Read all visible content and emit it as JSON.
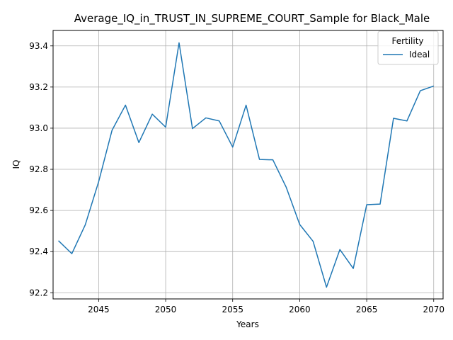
{
  "chart_data": {
    "type": "line",
    "title": "Average_IQ_in_TRUST_IN_SUPREME_COURT_Sample for Black_Male",
    "xlabel": "Years",
    "ylabel": "IQ",
    "xlim": [
      2041.6,
      2070.7
    ],
    "ylim": [
      92.17,
      93.475
    ],
    "xticks": [
      2045,
      2050,
      2055,
      2060,
      2065,
      2070
    ],
    "yticks": [
      92.2,
      92.4,
      92.6,
      92.8,
      93.0,
      93.2,
      93.4
    ],
    "xtick_labels": [
      "2045",
      "2050",
      "2055",
      "2060",
      "2065",
      "2070"
    ],
    "ytick_labels": [
      "92.2",
      "92.4",
      "92.6",
      "92.8",
      "93.0",
      "93.2",
      "93.4"
    ],
    "grid": true,
    "legend": {
      "title": "Fertility",
      "placement": "top-right"
    },
    "series": [
      {
        "name": "Ideal",
        "color": "#1f77b4",
        "x": [
          2042,
          2043,
          2044,
          2045,
          2046,
          2047,
          2048,
          2049,
          2050,
          2051,
          2052,
          2053,
          2054,
          2055,
          2056,
          2057,
          2058,
          2059,
          2060,
          2061,
          2062,
          2063,
          2064,
          2065,
          2066,
          2067,
          2068,
          2069,
          2070
        ],
        "y": [
          92.453,
          92.39,
          92.53,
          92.74,
          92.99,
          93.112,
          92.93,
          93.068,
          93.005,
          93.415,
          92.998,
          93.05,
          93.035,
          92.908,
          93.112,
          92.848,
          92.846,
          92.712,
          92.532,
          92.45,
          92.227,
          92.41,
          92.318,
          92.628,
          92.631,
          93.048,
          93.035,
          93.182,
          93.205
        ]
      }
    ]
  }
}
